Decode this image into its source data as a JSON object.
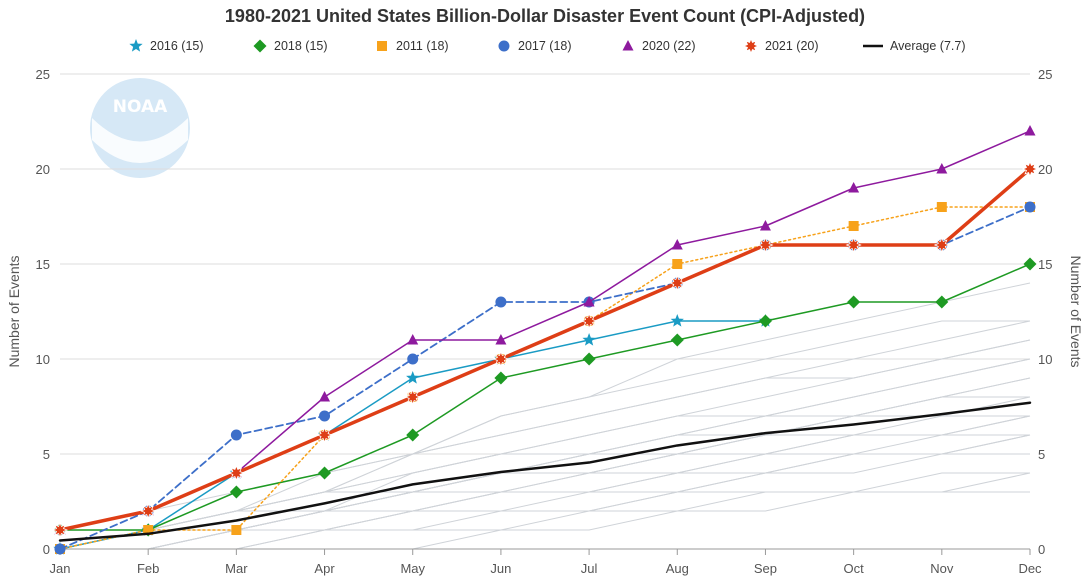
{
  "chart_data": {
    "type": "line",
    "title": "1980-2021 United States Billion-Dollar Disaster Event Count (CPI-Adjusted)",
    "ylabel": "Number of Events",
    "ylabel_right": "Number of Events",
    "xlabel": "",
    "categories": [
      "Jan",
      "Feb",
      "Mar",
      "Apr",
      "May",
      "Jun",
      "Jul",
      "Aug",
      "Sep",
      "Oct",
      "Nov",
      "Dec"
    ],
    "ylim": [
      0,
      25
    ],
    "yticks": [
      0,
      5,
      10,
      15,
      20,
      25
    ],
    "grid": true,
    "legend_position": "top",
    "watermark": "NOAA",
    "series": [
      {
        "name": "2016 (15)",
        "color": "#1a9bc4",
        "marker": "star",
        "dash": "solid",
        "width": 1.5,
        "values": [
          0,
          1,
          4,
          6,
          9,
          10,
          11,
          12,
          12,
          null,
          null,
          null
        ]
      },
      {
        "name": "2018 (15)",
        "color": "#1e9a23",
        "marker": "diamond",
        "dash": "solid",
        "width": 1.5,
        "values": [
          1,
          1,
          3,
          4,
          6,
          9,
          10,
          11,
          12,
          13,
          13,
          15
        ]
      },
      {
        "name": "2011 (18)",
        "color": "#f7a21b",
        "marker": "square",
        "dash": "dotted",
        "width": 1.5,
        "values": [
          0,
          1,
          1,
          6,
          8,
          10,
          12,
          15,
          16,
          17,
          18,
          18
        ]
      },
      {
        "name": "2017 (18)",
        "color": "#3d6fc9",
        "marker": "circle",
        "dash": "dashed",
        "width": 1.8,
        "values": [
          0,
          2,
          6,
          7,
          10,
          13,
          13,
          14,
          16,
          16,
          16,
          18
        ]
      },
      {
        "name": "2020 (22)",
        "color": "#8e1a9e",
        "marker": "triangle",
        "dash": "solid",
        "width": 1.5,
        "values": [
          1,
          2,
          4,
          8,
          11,
          11,
          13,
          16,
          17,
          19,
          20,
          22
        ]
      },
      {
        "name": "2021 (20)",
        "color": "#de3e16",
        "marker": "burst",
        "dash": "solid",
        "width": 3.5,
        "values": [
          1,
          2,
          4,
          6,
          8,
          10,
          12,
          14,
          16,
          16,
          16,
          20
        ]
      },
      {
        "name": "Average (7.7)",
        "color": "#111111",
        "marker": "none",
        "dash": "solid",
        "width": 2.5,
        "values": [
          0.45,
          0.8,
          1.5,
          2.4,
          3.4,
          4.05,
          4.55,
          5.45,
          6.1,
          6.55,
          7.1,
          7.7
        ]
      }
    ],
    "background_years": [
      [
        0,
        0,
        0,
        0,
        0,
        1,
        1,
        2,
        2,
        3,
        3,
        4
      ],
      [
        0,
        0,
        0,
        1,
        1,
        1,
        2,
        2,
        3,
        3,
        3,
        3
      ],
      [
        0,
        0,
        1,
        1,
        2,
        2,
        2,
        3,
        3,
        3,
        4,
        4
      ],
      [
        0,
        0,
        0,
        1,
        1,
        2,
        2,
        3,
        4,
        4,
        5,
        5
      ],
      [
        0,
        0,
        1,
        1,
        2,
        2,
        3,
        3,
        4,
        5,
        5,
        6
      ],
      [
        0,
        1,
        1,
        2,
        2,
        3,
        3,
        4,
        4,
        5,
        5,
        6
      ],
      [
        0,
        0,
        1,
        1,
        2,
        3,
        3,
        4,
        5,
        5,
        6,
        6
      ],
      [
        0,
        1,
        1,
        2,
        3,
        3,
        4,
        4,
        5,
        6,
        6,
        7
      ],
      [
        0,
        0,
        1,
        2,
        2,
        3,
        4,
        5,
        5,
        6,
        6,
        7
      ],
      [
        0,
        1,
        1,
        2,
        3,
        4,
        4,
        5,
        6,
        6,
        7,
        7
      ],
      [
        0,
        0,
        1,
        2,
        3,
        4,
        5,
        5,
        6,
        7,
        7,
        8
      ],
      [
        1,
        1,
        2,
        2,
        3,
        4,
        4,
        5,
        6,
        7,
        8,
        8
      ],
      [
        0,
        1,
        1,
        2,
        3,
        4,
        5,
        6,
        7,
        7,
        8,
        9
      ],
      [
        0,
        1,
        2,
        3,
        3,
        4,
        5,
        6,
        6,
        7,
        8,
        9
      ],
      [
        0,
        1,
        1,
        2,
        4,
        5,
        5,
        6,
        7,
        8,
        9,
        10
      ],
      [
        1,
        1,
        2,
        3,
        4,
        5,
        6,
        7,
        7,
        8,
        9,
        10
      ],
      [
        0,
        1,
        2,
        3,
        4,
        5,
        6,
        7,
        8,
        9,
        10,
        11
      ],
      [
        1,
        1,
        2,
        3,
        5,
        6,
        7,
        8,
        9,
        9,
        10,
        11
      ],
      [
        0,
        1,
        2,
        4,
        5,
        6,
        7,
        8,
        9,
        10,
        11,
        12
      ],
      [
        0,
        1,
        2,
        3,
        5,
        7,
        8,
        9,
        10,
        11,
        12,
        12
      ],
      [
        1,
        2,
        3,
        4,
        5,
        7,
        8,
        10,
        11,
        12,
        13,
        14
      ]
    ]
  }
}
